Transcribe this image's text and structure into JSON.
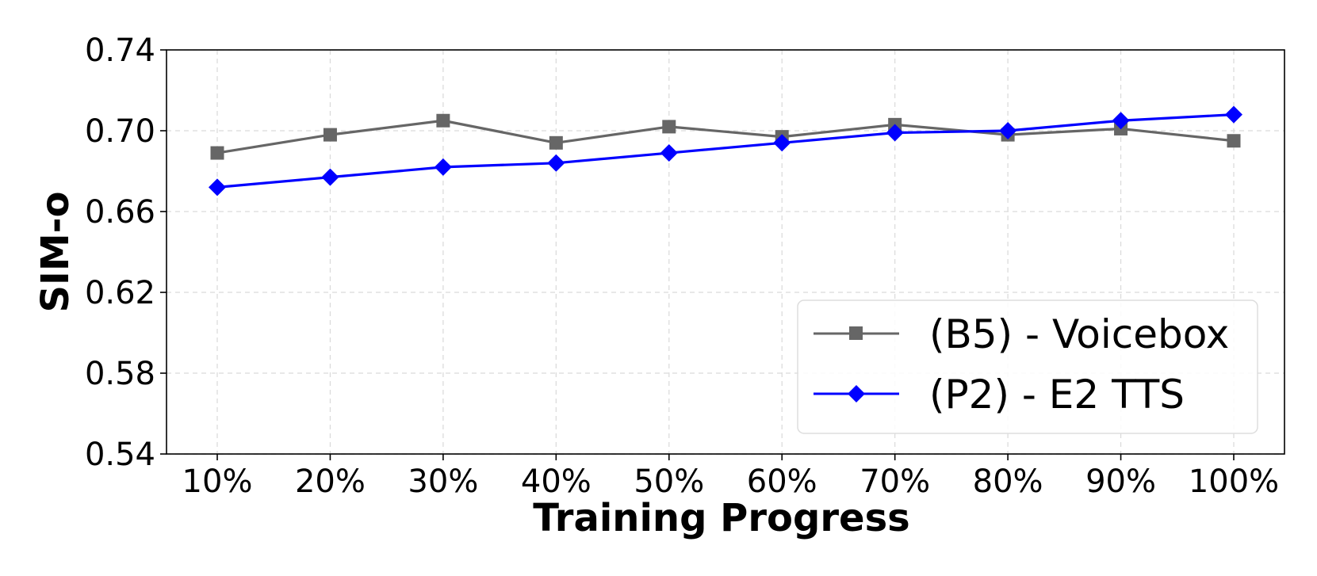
{
  "chart_data": {
    "type": "line",
    "xlabel": "Training Progress",
    "ylabel": "SIM-o",
    "categories": [
      "10%",
      "20%",
      "30%",
      "40%",
      "50%",
      "60%",
      "70%",
      "80%",
      "90%",
      "100%"
    ],
    "ylim": [
      0.54,
      0.74
    ],
    "yticks": [
      "0.54",
      "0.58",
      "0.62",
      "0.66",
      "0.70",
      "0.74"
    ],
    "grid": true,
    "legend_position": "lower-right",
    "series": [
      {
        "name": "(B5) - Voicebox",
        "color": "#666666",
        "marker": "square",
        "values": [
          0.689,
          0.698,
          0.705,
          0.694,
          0.702,
          0.697,
          0.703,
          0.698,
          0.701,
          0.695
        ]
      },
      {
        "name": "(P2) - E2 TTS",
        "color": "#0000ff",
        "marker": "diamond",
        "values": [
          0.672,
          0.677,
          0.682,
          0.684,
          0.689,
          0.694,
          0.699,
          0.7,
          0.705,
          0.708
        ]
      }
    ]
  }
}
